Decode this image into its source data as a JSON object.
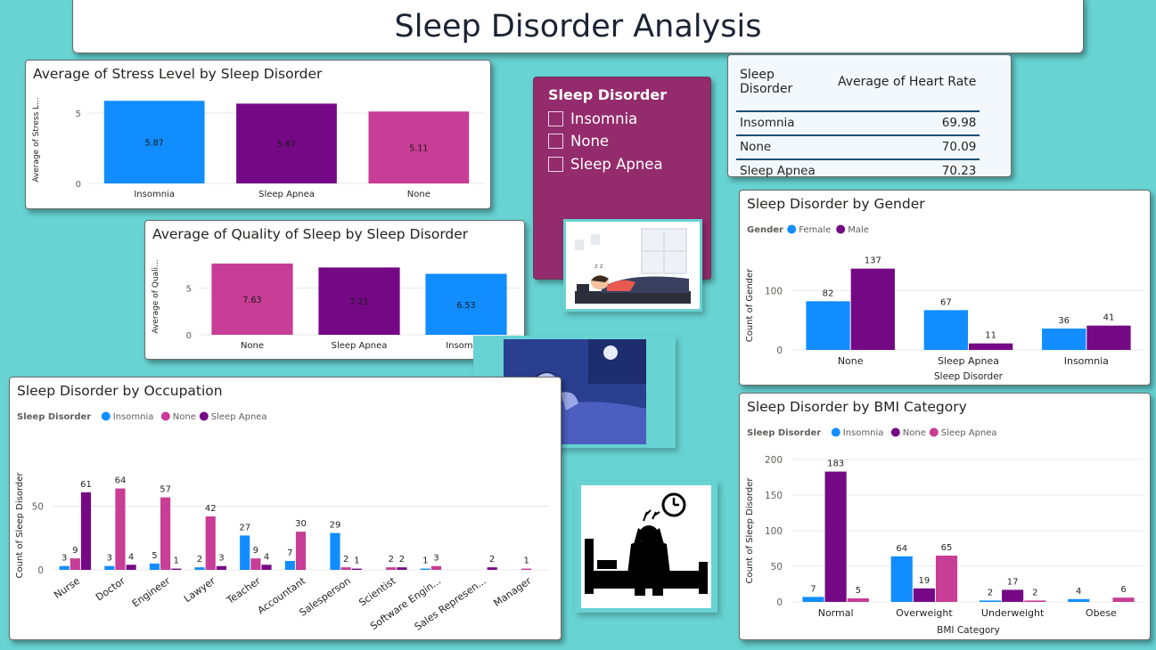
{
  "dashboard_title": "Sleep Disorder Analysis",
  "colors": {
    "blue": "#118dff",
    "purple": "#750985",
    "pink": "#c83d95",
    "slicer_bg": "#932b6c",
    "background": "#67d3d2"
  },
  "slicer": {
    "title": "Sleep Disorder",
    "options": [
      "Insomnia",
      "None",
      "Sleep Apnea"
    ]
  },
  "heart_table": {
    "headers": [
      "Sleep Disorder",
      "Average of Heart Rate"
    ],
    "rows": [
      {
        "label": "Insomnia",
        "value": "69.98"
      },
      {
        "label": "None",
        "value": "70.09"
      },
      {
        "label": "Sleep Apnea",
        "value": "70.23"
      }
    ]
  },
  "images": [
    "sleeping-person-illustration",
    "insomnia-awake-in-bed-illustration",
    "stressed-person-on-bed-icon"
  ],
  "chart_data": [
    {
      "id": "stress",
      "type": "bar",
      "title": "Average of Stress Level by Sleep Disorder",
      "ylabel": "Average of Stress L...",
      "categories": [
        "Insomnia",
        "Sleep Apnea",
        "None"
      ],
      "values": [
        5.87,
        5.67,
        5.11
      ],
      "labels": [
        "5.87",
        "5.67",
        "5.11"
      ],
      "colors": [
        "#118dff",
        "#750985",
        "#c83d95"
      ],
      "yticks": [
        0,
        5
      ],
      "ylim": [
        0,
        6.2
      ]
    },
    {
      "id": "quality",
      "type": "bar",
      "title": "Average of Quality of Sleep by Sleep Disorder",
      "ylabel": "Average of Quali...",
      "categories": [
        "None",
        "Sleep Apnea",
        "Insomnia"
      ],
      "values": [
        7.63,
        7.21,
        6.53
      ],
      "labels": [
        "7.63",
        "7.21",
        "6.53"
      ],
      "colors": [
        "#c83d95",
        "#750985",
        "#118dff"
      ],
      "yticks": [
        0,
        5
      ],
      "ylim": [
        0,
        8.2
      ]
    },
    {
      "id": "gender",
      "type": "bar",
      "title": "Sleep Disorder by Gender",
      "legend_title": "Gender",
      "xlabel": "Sleep Disorder",
      "ylabel": "Count of Gender",
      "categories": [
        "None",
        "Sleep Apnea",
        "Insomnia"
      ],
      "series": [
        {
          "name": "Female",
          "color": "#118dff",
          "values": [
            82,
            67,
            36
          ]
        },
        {
          "name": "Male",
          "color": "#750985",
          "values": [
            137,
            11,
            41
          ]
        }
      ],
      "yticks": [
        0,
        100
      ],
      "ylim": [
        0,
        150
      ]
    },
    {
      "id": "bmi",
      "type": "bar",
      "title": "Sleep Disorder by BMI Category",
      "legend_title": "Sleep Disorder",
      "xlabel": "BMI Category",
      "ylabel": "Count of Sleep Disorder",
      "categories": [
        "Normal",
        "Overweight",
        "Underweight",
        "Obese"
      ],
      "series": [
        {
          "name": "Insomnia",
          "color": "#118dff",
          "values": [
            7,
            64,
            2,
            4
          ]
        },
        {
          "name": "None",
          "color": "#750985",
          "values": [
            183,
            19,
            17,
            null
          ]
        },
        {
          "name": "Sleep Apnea",
          "color": "#c83d95",
          "values": [
            5,
            65,
            2,
            6
          ]
        }
      ],
      "yticks": [
        0,
        50,
        100,
        150,
        200
      ],
      "ylim": [
        0,
        200
      ]
    },
    {
      "id": "occupation",
      "type": "bar",
      "title": "Sleep Disorder by Occupation",
      "legend_title": "Sleep Disorder",
      "ylabel": "Count of Sleep Disorder",
      "categories": [
        "Nurse",
        "Doctor",
        "Engineer",
        "Lawyer",
        "Teacher",
        "Accountant",
        "Salesperson",
        "Scientist",
        "Software Engin...",
        "Sales Represen...",
        "Manager"
      ],
      "series": [
        {
          "name": "Insomnia",
          "color": "#118dff",
          "values": [
            3,
            3,
            5,
            2,
            27,
            7,
            29,
            null,
            1,
            null,
            null
          ]
        },
        {
          "name": "None",
          "color": "#c83d95",
          "values": [
            9,
            64,
            57,
            42,
            9,
            30,
            2,
            2,
            3,
            null,
            1
          ]
        },
        {
          "name": "Sleep Apnea",
          "color": "#750985",
          "values": [
            61,
            4,
            1,
            3,
            4,
            null,
            1,
            2,
            null,
            2,
            null
          ]
        }
      ],
      "yticks": [
        0,
        50
      ],
      "ylim": [
        0,
        70
      ]
    }
  ]
}
